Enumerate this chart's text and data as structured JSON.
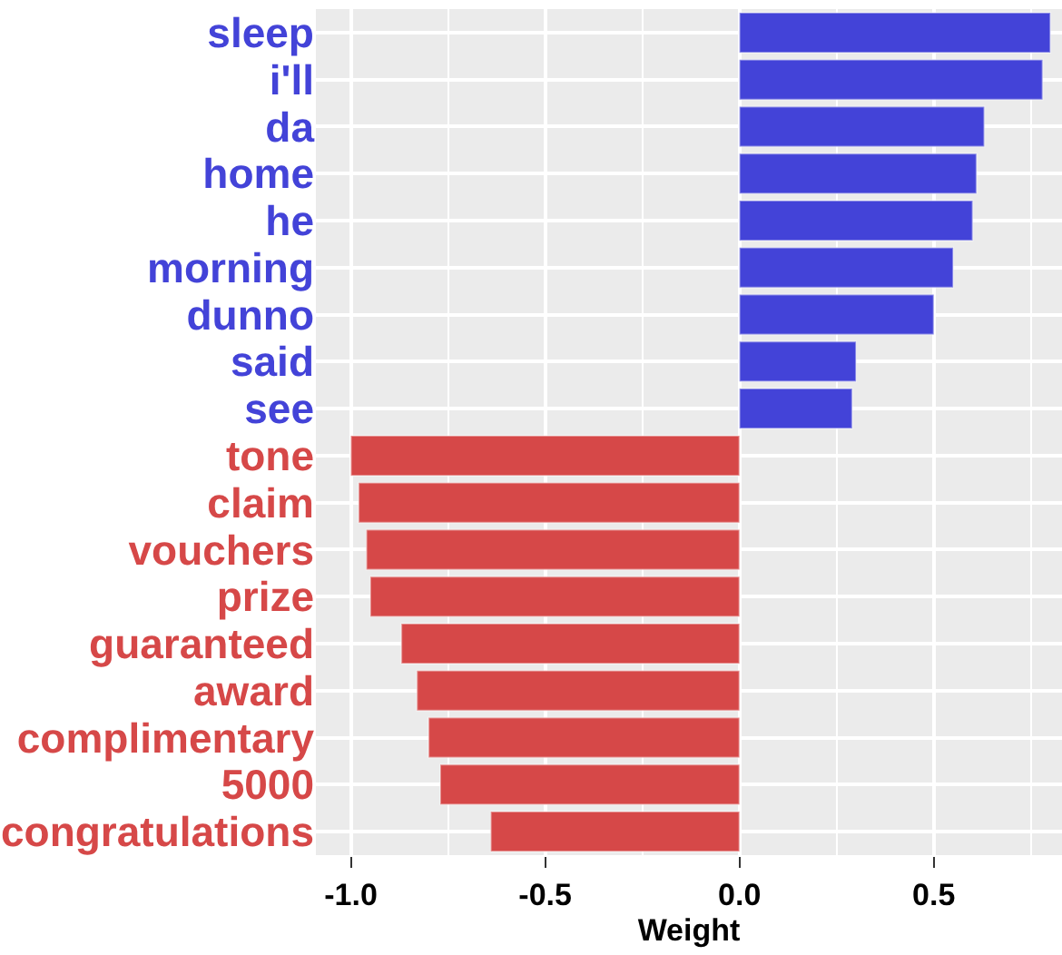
{
  "chart_data": {
    "type": "bar",
    "orientation": "horizontal",
    "xlabel": "Weight",
    "categories": [
      "sleep",
      "i'll",
      "da",
      "home",
      "he",
      "morning",
      "dunno",
      "said",
      "see",
      "tone",
      "claim",
      "vouchers",
      "prize",
      "guaranteed",
      "award",
      "complimentary",
      "5000",
      "congratulations"
    ],
    "values": [
      0.8,
      0.78,
      0.63,
      0.61,
      0.6,
      0.55,
      0.5,
      0.3,
      0.29,
      -1.0,
      -0.98,
      -0.96,
      -0.95,
      -0.87,
      -0.83,
      -0.8,
      -0.77,
      -0.64
    ],
    "colors": [
      "#4343d8",
      "#4343d8",
      "#4343d8",
      "#4343d8",
      "#4343d8",
      "#4343d8",
      "#4343d8",
      "#4343d8",
      "#4343d8",
      "#d64848",
      "#d64848",
      "#d64848",
      "#d64848",
      "#d64848",
      "#d64848",
      "#d64848",
      "#d64848",
      "#d64848"
    ],
    "xlim": [
      -1.09,
      0.83
    ],
    "xticks": [
      {
        "value": -1.0,
        "label": "-1.0"
      },
      {
        "value": -0.5,
        "label": "-0.5"
      },
      {
        "value": 0.0,
        "label": "0.0"
      },
      {
        "value": 0.5,
        "label": "0.5"
      }
    ],
    "grid": true
  }
}
